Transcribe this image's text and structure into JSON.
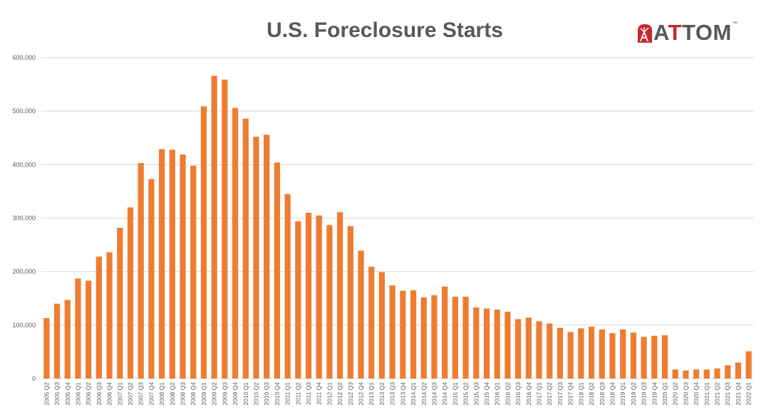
{
  "logo": {
    "text": "ATTOM",
    "tm": "™",
    "brand_red": "#c8272e",
    "brand_gray": "#58585a"
  },
  "colors": {
    "bar": "#ed7d31",
    "grid": "#d9d9d9",
    "axis_text": "#595959"
  },
  "chart_data": {
    "type": "bar",
    "title": "U.S. Foreclosure Starts",
    "xlabel": "",
    "ylabel": "",
    "ylim": [
      0,
      600000
    ],
    "yticks": [
      0,
      100000,
      200000,
      300000,
      400000,
      500000,
      600000
    ],
    "ytick_labels": [
      "0",
      "100,000",
      "200,000",
      "300,000",
      "400,000",
      "500,000",
      "600,000"
    ],
    "grid": true,
    "legend": "none",
    "categories": [
      "2005 Q2",
      "2005 Q3",
      "2005 Q4",
      "2006 Q1",
      "2006 Q2",
      "2006 Q3",
      "2006 Q4",
      "2007 Q1",
      "2007 Q2",
      "2007 Q3",
      "2007 Q4",
      "2008 Q1",
      "2008 Q2",
      "2008 Q3",
      "2008 Q4",
      "2009 Q1",
      "2009 Q2",
      "2009 Q3",
      "2009 Q4",
      "2010 Q1",
      "2010 Q2",
      "2010 Q3",
      "2010 Q4",
      "2011 Q1",
      "2011 Q2",
      "2011 Q3",
      "2011 Q4",
      "2012 Q1",
      "2012 Q2",
      "2012 Q3",
      "2012 Q4",
      "2013 Q1",
      "2013 Q2",
      "2013 Q3",
      "2013 Q4",
      "2014 Q1",
      "2014 Q2",
      "2014 Q3",
      "2014 Q4",
      "2015 Q1",
      "2015 Q2",
      "2015 Q3",
      "2015 Q4",
      "2016 Q1",
      "2016 Q2",
      "2016 Q3",
      "2016 Q4",
      "2017 Q1",
      "2017 Q2",
      "2017 Q3",
      "2017 Q4",
      "2018 Q1",
      "2018 Q2",
      "2018 Q3",
      "2018 Q4",
      "2019 Q1",
      "2019 Q2",
      "2019 Q3",
      "2019 Q4",
      "2020 Q1",
      "2020 Q2",
      "2020 Q3",
      "2020 Q4",
      "2021 Q1",
      "2021 Q2",
      "2021 Q3",
      "2021 Q4",
      "2022 Q1"
    ],
    "values": [
      113000,
      140000,
      147000,
      187000,
      183000,
      228000,
      236000,
      282000,
      320000,
      403000,
      373000,
      429000,
      428000,
      419000,
      398000,
      509000,
      566000,
      559000,
      506000,
      486000,
      452000,
      456000,
      404000,
      345000,
      294000,
      310000,
      305000,
      287000,
      311000,
      285000,
      239000,
      209000,
      199000,
      174000,
      164000,
      165000,
      152000,
      156000,
      172000,
      153000,
      153000,
      133000,
      131000,
      129000,
      125000,
      111000,
      114000,
      107000,
      103000,
      95000,
      87000,
      94000,
      97000,
      92000,
      85000,
      92000,
      86000,
      78000,
      80000,
      81000,
      17000,
      15000,
      17000,
      17000,
      19000,
      25000,
      30000,
      51000
    ]
  }
}
